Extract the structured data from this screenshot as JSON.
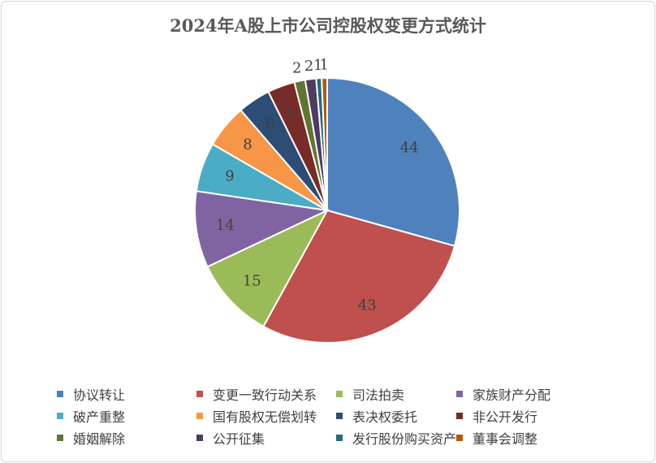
{
  "chart_data": {
    "type": "pie",
    "title": "2024年A股上市公司控股权变更方式统计",
    "categories": [
      "协议转让",
      "变更一致行动关系",
      "司法拍卖",
      "家族财产分配",
      "破产重整",
      "国有股权无偿划转",
      "表决权委托",
      "非公开发行",
      "婚姻解除",
      "公开征集",
      "发行股份购买资产",
      "董事会调整"
    ],
    "values": [
      44,
      43,
      15,
      14,
      9,
      8,
      6,
      5,
      2,
      2,
      1,
      1
    ],
    "colors": [
      "#4F81BD",
      "#C0504D",
      "#9BBB59",
      "#8064A2",
      "#4BACC6",
      "#F79646",
      "#2C4D75",
      "#772C2A",
      "#5F7530",
      "#4D3B62",
      "#276A7C",
      "#B65708"
    ],
    "data_labels": [
      "44",
      "43",
      "15",
      "14",
      "9",
      "8",
      "6",
      "5",
      "2",
      "2",
      "1",
      "1"
    ],
    "start_angle_deg": 0,
    "direction": "clockwise",
    "legend_position": "bottom"
  }
}
